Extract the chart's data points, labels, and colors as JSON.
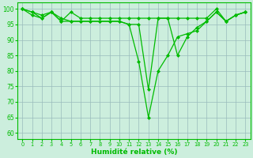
{
  "x": [
    0,
    1,
    2,
    3,
    4,
    5,
    6,
    7,
    8,
    9,
    10,
    11,
    12,
    13,
    14,
    15,
    16,
    17,
    18,
    19,
    20,
    21,
    22,
    23
  ],
  "series": [
    [
      100,
      99,
      98,
      99,
      96,
      99,
      97,
      97,
      97,
      97,
      97,
      97,
      97,
      97,
      97,
      97,
      97,
      97,
      97,
      97,
      100,
      96,
      98,
      99
    ],
    [
      100,
      99,
      97,
      99,
      96,
      96,
      96,
      96,
      96,
      96,
      96,
      95,
      95,
      74,
      97,
      97,
      85,
      91,
      94,
      96,
      99,
      96,
      98,
      99
    ],
    [
      100,
      98,
      97,
      99,
      97,
      96,
      96,
      96,
      96,
      96,
      96,
      95,
      83,
      65,
      80,
      85,
      91,
      92,
      93,
      96,
      99,
      96,
      98,
      99
    ]
  ],
  "line_color": "#00bb00",
  "marker_color": "#00bb00",
  "bg_color": "#cceedd",
  "grid_color": "#99bbbb",
  "xlabel": "Humidité relative (%)",
  "ylim": [
    58,
    102
  ],
  "xlim": [
    -0.5,
    23.5
  ],
  "yticks": [
    60,
    65,
    70,
    75,
    80,
    85,
    90,
    95,
    100
  ],
  "xticks": [
    0,
    1,
    2,
    3,
    4,
    5,
    6,
    7,
    8,
    9,
    10,
    11,
    12,
    13,
    14,
    15,
    16,
    17,
    18,
    19,
    20,
    21,
    22,
    23
  ]
}
